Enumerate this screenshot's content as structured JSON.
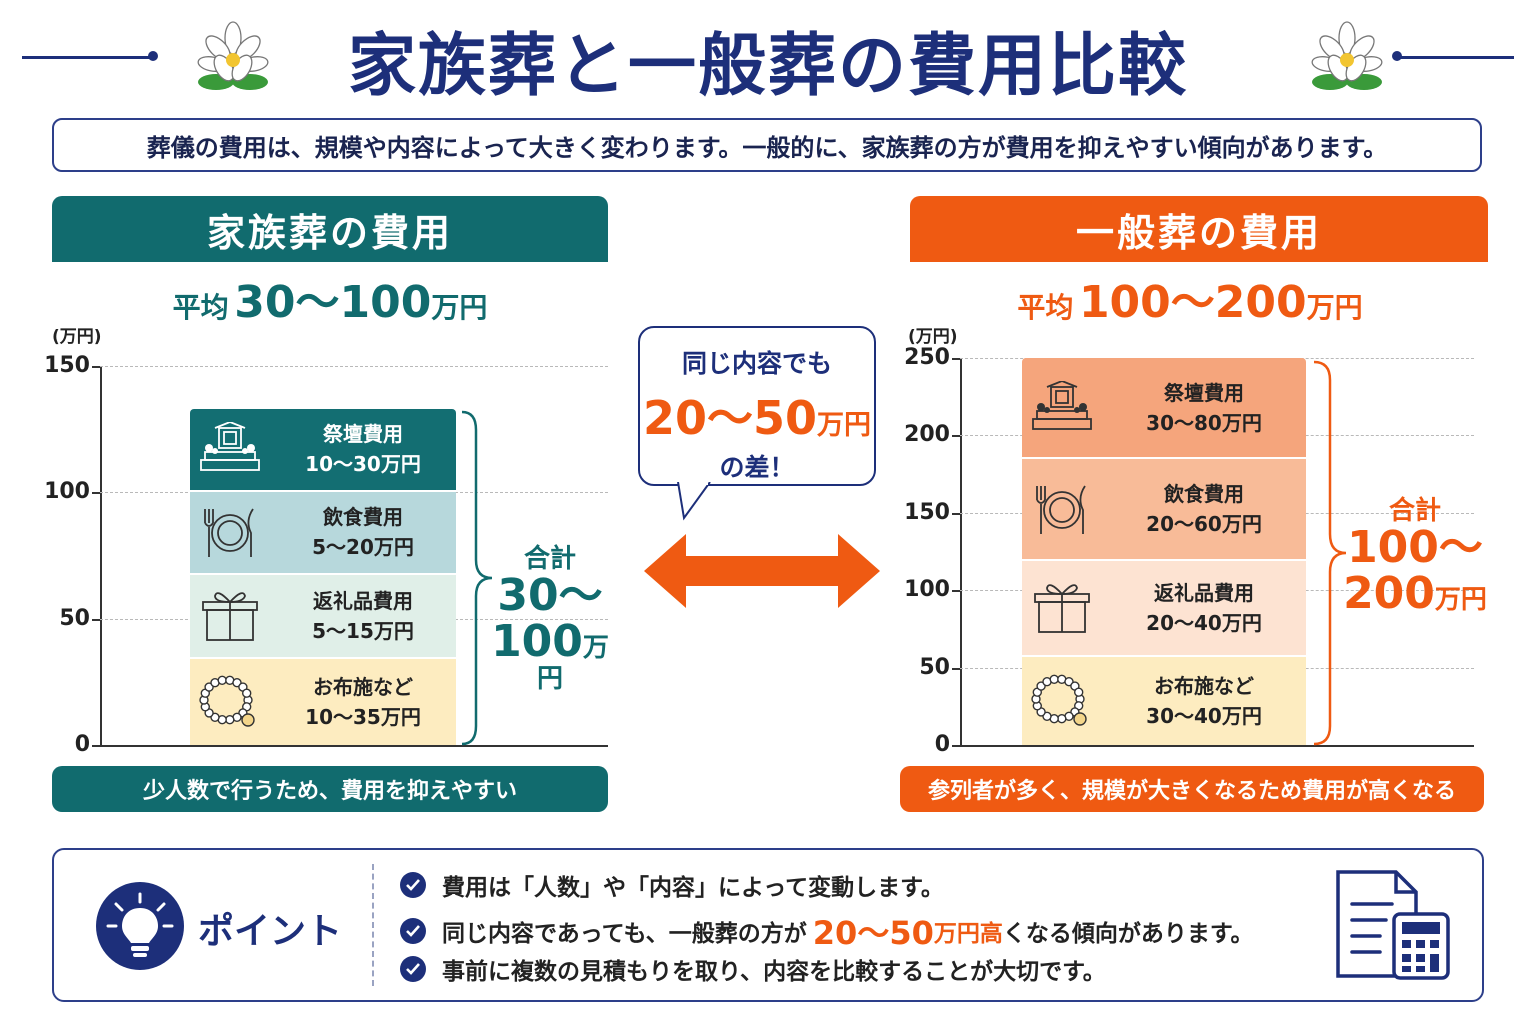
{
  "title": "家族葬と一般葬の費用比較",
  "intro": "葬儀の費用は、規模や内容によって大きく変わります。一般的に、家族葬の方が費用を抑えやすい傾向があります。",
  "colors": {
    "navy": "#1d2f7a",
    "teal": "#116b6e",
    "orange": "#ef5a12"
  },
  "family": {
    "header": "家族葬の費用",
    "avg_label": "平均",
    "avg_value": "30〜100",
    "avg_unit": "万円",
    "unit_label": "(万円)",
    "total_label": "合計",
    "total_value_1": "30〜",
    "total_value_2": "100",
    "total_unit": "万円",
    "footer": "少人数で行うため、費用を抑えやすい"
  },
  "general": {
    "header": "一般葬の費用",
    "avg_label": "平均",
    "avg_value": "100〜200",
    "avg_unit": "万円",
    "unit_label": "(万円)",
    "total_label": "合計",
    "total_value_1": "100〜",
    "total_value_2": "200",
    "total_unit": "万円",
    "footer": "参列者が多く、規模が大きくなるため費用が高くなる"
  },
  "bubble": {
    "line1": "同じ内容でも",
    "value": "20〜50",
    "unit": "万円",
    "line3": "の差！"
  },
  "point": {
    "label": "ポイント",
    "items": [
      {
        "text": "費用は「人数」や「内容」によって変動します。"
      },
      {
        "pre": "同じ内容であっても、一般葬の方が",
        "hl_num": "20〜50",
        "hl_unit": "万円高",
        "post": "くなる傾向があります。"
      },
      {
        "text": "事前に複数の見積もりを取り、内容を比較することが大切です。"
      }
    ]
  },
  "chart_data": [
    {
      "type": "bar",
      "stacked": true,
      "title": "家族葬の費用",
      "ylabel": "(万円)",
      "ylim": [
        0,
        150
      ],
      "yticks": [
        0,
        50,
        100,
        150
      ],
      "grid": true,
      "series": [
        {
          "name": "お布施など",
          "range": "10〜35万円",
          "value": 35,
          "icon": "prayer-beads-icon",
          "color": "#fdecc0"
        },
        {
          "name": "返礼品費用",
          "range": "5〜15万円",
          "value": 33,
          "icon": "gift-box-icon",
          "color": "#e0efe8"
        },
        {
          "name": "飲食費用",
          "range": "5〜20万円",
          "value": 33,
          "icon": "plate-cutlery-icon",
          "color": "#b7d8dc"
        },
        {
          "name": "祭壇費用",
          "range": "10〜30万円",
          "value": 32,
          "icon": "altar-icon",
          "color": "#136e72"
        }
      ]
    },
    {
      "type": "bar",
      "stacked": true,
      "title": "一般葬の費用",
      "ylabel": "(万円)",
      "ylim": [
        0,
        250
      ],
      "yticks": [
        0,
        50,
        100,
        150,
        200,
        250
      ],
      "grid": true,
      "series": [
        {
          "name": "お布施など",
          "range": "30〜40万円",
          "value": 58,
          "icon": "prayer-beads-icon",
          "color": "#fdecc0"
        },
        {
          "name": "返礼品費用",
          "range": "20〜40万円",
          "value": 62,
          "icon": "gift-box-icon",
          "color": "#fde3d2"
        },
        {
          "name": "飲食費用",
          "range": "20〜60万円",
          "value": 66,
          "icon": "plate-cutlery-icon",
          "color": "#f8bb98"
        },
        {
          "name": "祭壇費用",
          "range": "30〜80万円",
          "value": 64,
          "icon": "altar-icon",
          "color": "#f5a57c"
        }
      ]
    }
  ]
}
